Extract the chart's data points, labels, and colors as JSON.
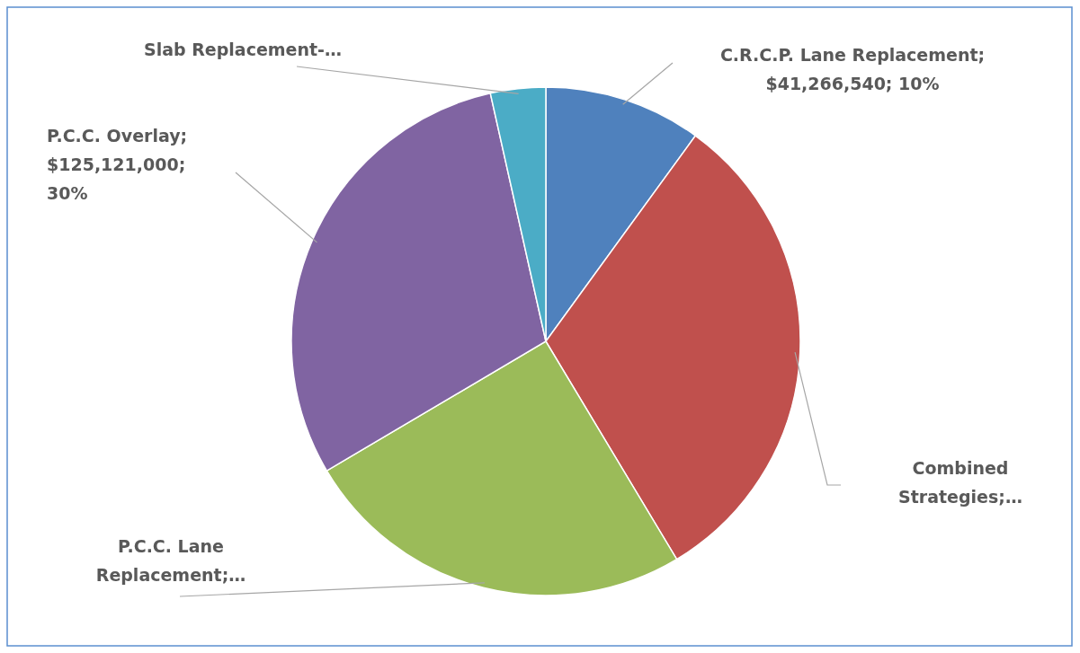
{
  "chart_data": {
    "type": "pie",
    "categories": [
      "C.R.C.P. Lane Replacement; $41,266,540; 10%",
      "Combined Strategies;…",
      "P.C.C. Lane Replacement;…",
      "P.C.C. Overlay; $125,121,000; 30%",
      "Slab Replacement-…"
    ],
    "values": [
      10,
      31.4,
      25.1,
      30,
      3.5
    ],
    "colors": [
      "#4f81bd",
      "#c0504d",
      "#9bbb59",
      "#8064a2",
      "#4bacc6"
    ]
  }
}
